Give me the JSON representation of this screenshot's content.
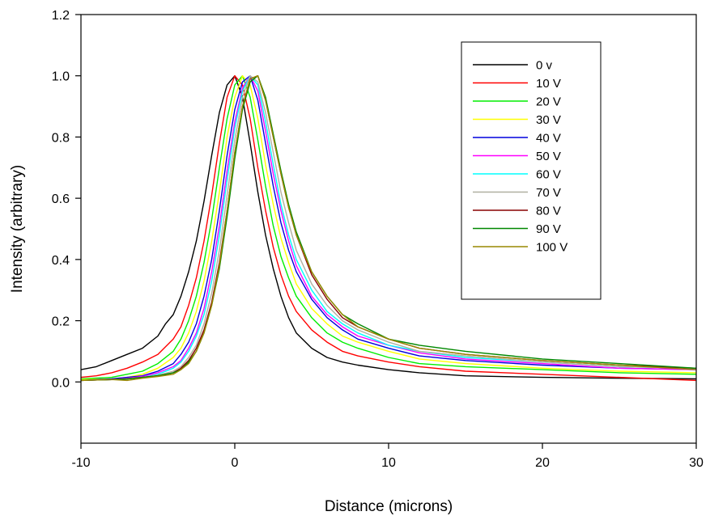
{
  "chart_data": {
    "type": "line",
    "title": "",
    "xlabel": "Distance (microns)",
    "ylabel": "Intensity (arbitrary)",
    "xlim": [
      -10,
      30
    ],
    "ylim": [
      -0.2,
      1.2
    ],
    "xticks": [
      -10,
      0,
      10,
      20,
      30
    ],
    "xtick_labels": [
      "-10",
      "0",
      "10",
      "20",
      "30"
    ],
    "yticks": [
      0.0,
      0.2,
      0.4,
      0.6,
      0.8,
      1.0,
      1.2
    ],
    "ytick_labels": [
      "0.0",
      "0.2",
      "0.4",
      "0.6",
      "0.8",
      "1.0",
      "1.2"
    ],
    "grid": false,
    "legend_position": "top-right",
    "series": [
      {
        "name": "0 v",
        "color": "#000000",
        "x": [
          -10,
          -9,
          -8,
          -7,
          -6,
          -5,
          -4.5,
          -4,
          -3.5,
          -3,
          -2.5,
          -2,
          -1.5,
          -1,
          -0.5,
          0,
          0.5,
          1,
          1.5,
          2,
          2.5,
          3,
          3.5,
          4,
          5,
          6,
          7,
          8,
          10,
          12,
          15,
          20,
          25,
          30
        ],
        "y": [
          0.04,
          0.05,
          0.07,
          0.09,
          0.11,
          0.15,
          0.19,
          0.22,
          0.28,
          0.36,
          0.46,
          0.59,
          0.74,
          0.88,
          0.97,
          1.0,
          0.93,
          0.78,
          0.62,
          0.48,
          0.37,
          0.28,
          0.21,
          0.16,
          0.11,
          0.08,
          0.065,
          0.055,
          0.04,
          0.03,
          0.02,
          0.015,
          0.012,
          0.01
        ]
      },
      {
        "name": "10 V",
        "color": "#ff0000",
        "x": [
          -10,
          -9,
          -8,
          -7,
          -6,
          -5,
          -4,
          -3.5,
          -3,
          -2.5,
          -2,
          -1.5,
          -1,
          -0.5,
          0,
          0.5,
          1,
          1.5,
          2,
          2.5,
          3,
          3.5,
          4,
          5,
          6,
          7,
          8,
          10,
          12,
          15,
          20,
          25,
          30
        ],
        "y": [
          0.015,
          0.02,
          0.03,
          0.045,
          0.065,
          0.09,
          0.14,
          0.18,
          0.25,
          0.34,
          0.46,
          0.61,
          0.78,
          0.93,
          1.0,
          0.97,
          0.86,
          0.7,
          0.56,
          0.44,
          0.35,
          0.28,
          0.23,
          0.17,
          0.13,
          0.1,
          0.085,
          0.065,
          0.05,
          0.035,
          0.025,
          0.015,
          0.005
        ]
      },
      {
        "name": "20 V",
        "color": "#00ee00",
        "x": [
          -10,
          -8,
          -7,
          -6,
          -5,
          -4,
          -3.5,
          -3,
          -2.5,
          -2,
          -1.5,
          -1,
          -0.5,
          0,
          0.5,
          1,
          1.5,
          2,
          2.5,
          3,
          3.5,
          4,
          5,
          6,
          7,
          8,
          10,
          12,
          15,
          20,
          25,
          30
        ],
        "y": [
          0.01,
          0.015,
          0.025,
          0.035,
          0.06,
          0.1,
          0.14,
          0.2,
          0.28,
          0.39,
          0.53,
          0.7,
          0.86,
          0.97,
          1.0,
          0.93,
          0.79,
          0.64,
          0.51,
          0.41,
          0.34,
          0.28,
          0.21,
          0.16,
          0.13,
          0.11,
          0.08,
          0.06,
          0.05,
          0.04,
          0.03,
          0.025
        ]
      },
      {
        "name": "30 V",
        "color": "#ffff00",
        "x": [
          -10,
          -8,
          -7,
          -6,
          -5,
          -4,
          -3.5,
          -3,
          -2.5,
          -2,
          -1.5,
          -1,
          -0.5,
          0,
          0.5,
          1,
          1.5,
          2,
          2.5,
          3,
          3.5,
          4,
          5,
          6,
          7,
          8,
          10,
          12,
          15,
          20,
          25,
          30
        ],
        "y": [
          0.008,
          0.01,
          0.015,
          0.025,
          0.045,
          0.08,
          0.11,
          0.16,
          0.23,
          0.33,
          0.46,
          0.62,
          0.8,
          0.93,
          1.0,
          0.97,
          0.86,
          0.71,
          0.58,
          0.47,
          0.39,
          0.32,
          0.24,
          0.19,
          0.15,
          0.13,
          0.1,
          0.075,
          0.06,
          0.045,
          0.035,
          0.03
        ]
      },
      {
        "name": "40 V",
        "color": "#0000dd",
        "x": [
          -10,
          -8,
          -7,
          -6,
          -5,
          -4,
          -3.5,
          -3,
          -2.5,
          -2,
          -1.5,
          -1,
          -0.5,
          0,
          0.5,
          1,
          1.5,
          2,
          2.5,
          3,
          3.5,
          4,
          5,
          6,
          7,
          8,
          10,
          12,
          15,
          20,
          25,
          30
        ],
        "y": [
          0.005,
          0.01,
          0.015,
          0.02,
          0.035,
          0.06,
          0.09,
          0.13,
          0.19,
          0.28,
          0.4,
          0.56,
          0.74,
          0.89,
          0.98,
          1.0,
          0.92,
          0.78,
          0.64,
          0.52,
          0.43,
          0.36,
          0.27,
          0.21,
          0.17,
          0.14,
          0.11,
          0.085,
          0.07,
          0.055,
          0.045,
          0.04
        ]
      },
      {
        "name": "50 V",
        "color": "#ff00ff",
        "x": [
          -10,
          -8,
          -7,
          -6,
          -5,
          -4,
          -3.5,
          -3,
          -2.5,
          -2,
          -1.5,
          -1,
          -0.5,
          0,
          0.5,
          1,
          1.5,
          2,
          2.5,
          3,
          3.5,
          4,
          5,
          6,
          7,
          8,
          10,
          12,
          15,
          20,
          25,
          30
        ],
        "y": [
          0.005,
          0.008,
          0.012,
          0.018,
          0.03,
          0.05,
          0.07,
          0.11,
          0.16,
          0.24,
          0.36,
          0.51,
          0.69,
          0.85,
          0.96,
          1.0,
          0.95,
          0.82,
          0.68,
          0.56,
          0.46,
          0.38,
          0.28,
          0.22,
          0.18,
          0.15,
          0.12,
          0.095,
          0.075,
          0.06,
          0.045,
          0.04
        ]
      },
      {
        "name": "60 V",
        "color": "#00ffff",
        "x": [
          -10,
          -8,
          -7,
          -6,
          -5,
          -4,
          -3.5,
          -3,
          -2.5,
          -2,
          -1.5,
          -1,
          -0.5,
          0,
          0.5,
          1,
          1.5,
          2,
          2.5,
          3,
          3.5,
          4,
          5,
          6,
          7,
          8,
          10,
          12,
          15,
          20,
          25,
          30
        ],
        "y": [
          0.005,
          0.008,
          0.01,
          0.015,
          0.025,
          0.045,
          0.065,
          0.1,
          0.15,
          0.22,
          0.33,
          0.48,
          0.66,
          0.83,
          0.95,
          1.0,
          0.97,
          0.85,
          0.71,
          0.58,
          0.48,
          0.4,
          0.3,
          0.23,
          0.19,
          0.16,
          0.12,
          0.1,
          0.08,
          0.065,
          0.05,
          0.045
        ]
      },
      {
        "name": "70 V",
        "color": "#b0b0a0",
        "x": [
          -10,
          -8,
          -7,
          -6,
          -5,
          -4,
          -3.5,
          -3,
          -2.5,
          -2,
          -1.5,
          -1,
          -0.5,
          0,
          0.5,
          1,
          1.5,
          2,
          2.5,
          3,
          3.5,
          4,
          5,
          6,
          7,
          8,
          10,
          12,
          15,
          20,
          25,
          30
        ],
        "y": [
          0.005,
          0.008,
          0.01,
          0.015,
          0.022,
          0.035,
          0.05,
          0.08,
          0.12,
          0.19,
          0.29,
          0.43,
          0.61,
          0.79,
          0.93,
          1.0,
          0.98,
          0.88,
          0.75,
          0.62,
          0.52,
          0.43,
          0.32,
          0.25,
          0.2,
          0.17,
          0.13,
          0.1,
          0.085,
          0.065,
          0.05,
          0.045
        ]
      },
      {
        "name": "80 V",
        "color": "#880000",
        "x": [
          -10,
          -8,
          -7,
          -6,
          -5,
          -4,
          -3.5,
          -3,
          -2.5,
          -2,
          -1.5,
          -1,
          -0.5,
          0,
          0.5,
          1,
          1.5,
          2,
          2.5,
          3,
          3.5,
          4,
          5,
          6,
          7,
          8,
          10,
          12,
          15,
          20,
          25,
          30
        ],
        "y": [
          0.005,
          0.008,
          0.01,
          0.015,
          0.02,
          0.03,
          0.045,
          0.07,
          0.11,
          0.17,
          0.26,
          0.39,
          0.56,
          0.75,
          0.9,
          0.99,
          1.0,
          0.92,
          0.8,
          0.68,
          0.57,
          0.48,
          0.35,
          0.27,
          0.21,
          0.18,
          0.14,
          0.11,
          0.09,
          0.07,
          0.055,
          0.045
        ]
      },
      {
        "name": "90 V",
        "color": "#008800",
        "x": [
          -10,
          -8,
          -7,
          -6,
          -5,
          -4,
          -3.5,
          -3,
          -2.5,
          -2,
          -1.5,
          -1,
          -0.5,
          0,
          0.5,
          1,
          1.5,
          2,
          2.5,
          3,
          3.5,
          4,
          5,
          6,
          7,
          8,
          10,
          12,
          15,
          20,
          25,
          30
        ],
        "y": [
          0.005,
          0.008,
          0.01,
          0.015,
          0.02,
          0.03,
          0.04,
          0.065,
          0.1,
          0.16,
          0.25,
          0.37,
          0.54,
          0.73,
          0.89,
          0.98,
          1.0,
          0.93,
          0.81,
          0.69,
          0.58,
          0.49,
          0.36,
          0.28,
          0.22,
          0.19,
          0.14,
          0.12,
          0.1,
          0.075,
          0.06,
          0.045
        ]
      },
      {
        "name": "100 V",
        "color": "#998800",
        "x": [
          -10,
          -8,
          -7,
          -6,
          -5,
          -4,
          -3.5,
          -3,
          -2.5,
          -2,
          -1.5,
          -1,
          -0.5,
          0,
          0.5,
          1,
          1.5,
          2,
          2.5,
          3,
          3.5,
          4,
          5,
          6,
          7,
          8,
          10,
          12,
          15,
          20,
          25,
          30
        ],
        "y": [
          0.005,
          0.008,
          0.005,
          0.012,
          0.018,
          0.025,
          0.04,
          0.06,
          0.1,
          0.16,
          0.25,
          0.38,
          0.56,
          0.75,
          0.9,
          0.99,
          1.0,
          0.92,
          0.8,
          0.68,
          0.57,
          0.48,
          0.36,
          0.28,
          0.22,
          0.18,
          0.14,
          0.11,
          0.09,
          0.07,
          0.055,
          0.04
        ]
      }
    ]
  }
}
